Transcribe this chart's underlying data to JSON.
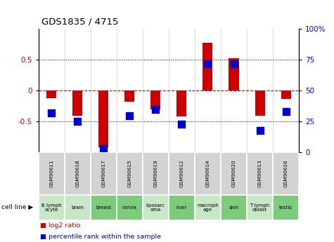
{
  "title": "GDS1835 / 4715",
  "samples": [
    "GSM90611",
    "GSM90618",
    "GSM90617",
    "GSM90615",
    "GSM90619",
    "GSM90612",
    "GSM90614",
    "GSM90620",
    "GSM90613",
    "GSM90616"
  ],
  "cell_lines": [
    "B lymph\nocyte",
    "brain",
    "breast",
    "cervix",
    "liposarc\noma",
    "liver",
    "macroph\nage",
    "skin",
    "T lymph\noblast",
    "testis"
  ],
  "cell_line_colors": [
    "#c8e6c8",
    "#c8e6c8",
    "#7dcc7d",
    "#7dcc7d",
    "#c8e6c8",
    "#7dcc7d",
    "#c8e6c8",
    "#7dcc7d",
    "#c8e6c8",
    "#7dcc7d"
  ],
  "log2_ratio": [
    -0.12,
    -0.4,
    -0.92,
    -0.18,
    -0.3,
    -0.42,
    0.78,
    0.53,
    -0.4,
    -0.13
  ],
  "percentile_rank": [
    32,
    25,
    3,
    30,
    35,
    23,
    72,
    72,
    18,
    33
  ],
  "ylim": [
    -1,
    1
  ],
  "yticks_left": [
    -0.5,
    0,
    0.5
  ],
  "yticks_right_vals": [
    -1,
    -0.5,
    0,
    0.5,
    1
  ],
  "yticks_right_labels": [
    "0",
    "25",
    "50",
    "75",
    "100%"
  ],
  "bar_color": "#cc0000",
  "dot_color": "#0000cc",
  "zero_line_color": "#cc0000",
  "legend_label_red": "log2 ratio",
  "legend_label_blue": "percentile rank within the sample",
  "cell_line_label": "cell line"
}
